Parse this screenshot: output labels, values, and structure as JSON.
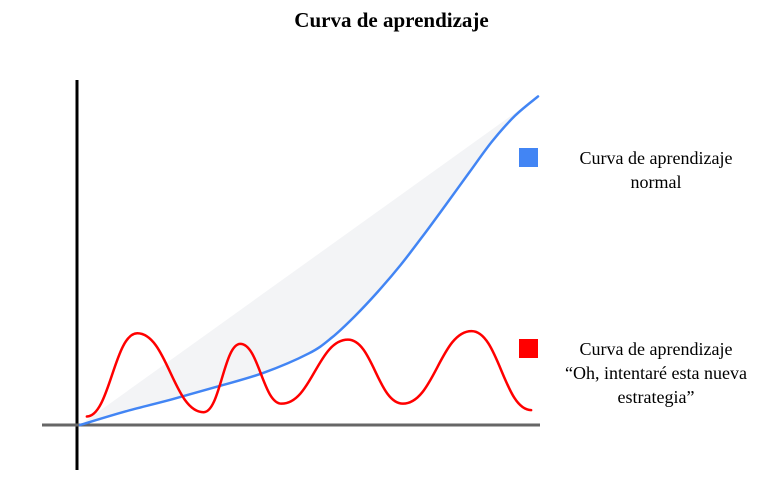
{
  "chart_data": {
    "type": "line",
    "title": "Curva de aprendizaje",
    "xlabel": "",
    "ylabel": "",
    "xlim": [
      0,
      10
    ],
    "ylim": [
      -0.45,
      7.5
    ],
    "grid": false,
    "legend_position": "right",
    "series": [
      {
        "name": "Curva de aprendizaje normal",
        "color": "#4285f4",
        "x": [
          0,
          1,
          2,
          3,
          4,
          5,
          5.5,
          6,
          6.5,
          7,
          7.5,
          8,
          8.5,
          9,
          9.5,
          10
        ],
        "y": [
          0,
          0.32,
          0.6,
          0.9,
          1.22,
          1.68,
          2.05,
          2.55,
          3.12,
          3.75,
          4.45,
          5.18,
          5.92,
          6.65,
          7.25,
          7.7
        ]
      },
      {
        "name": "Curva de aprendizaje “Oh, intentaré esta nueva estrategia”",
        "color": "#ff0000",
        "x": [
          0.15,
          1.25,
          2.7,
          3.5,
          4.4,
          5.85,
          7.05,
          8.55,
          9.85
        ],
        "y": [
          0.2,
          2.15,
          0.3,
          1.9,
          0.5,
          2.0,
          0.5,
          2.2,
          0.35
        ]
      }
    ]
  }
}
